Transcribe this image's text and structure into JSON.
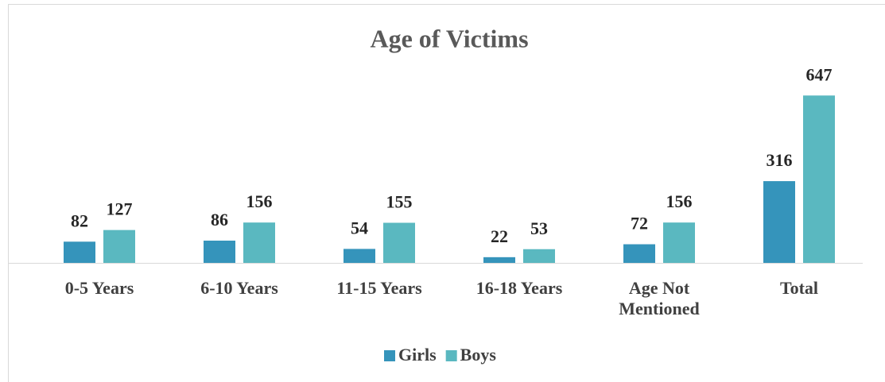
{
  "chart_data": {
    "type": "bar",
    "title": "Age of Victims",
    "categories": [
      "0-5 Years",
      "6-10 Years",
      "11-15 Years",
      "16-18 Years",
      "Age Not Mentioned",
      "Total"
    ],
    "series": [
      {
        "name": "Girls",
        "color": "#3594bb",
        "values": [
          82,
          86,
          54,
          22,
          72,
          316
        ]
      },
      {
        "name": "Boys",
        "color": "#5ab8c0",
        "values": [
          127,
          156,
          155,
          53,
          156,
          647
        ]
      }
    ],
    "ylim": [
      0,
      700
    ],
    "legend": "bottom"
  }
}
